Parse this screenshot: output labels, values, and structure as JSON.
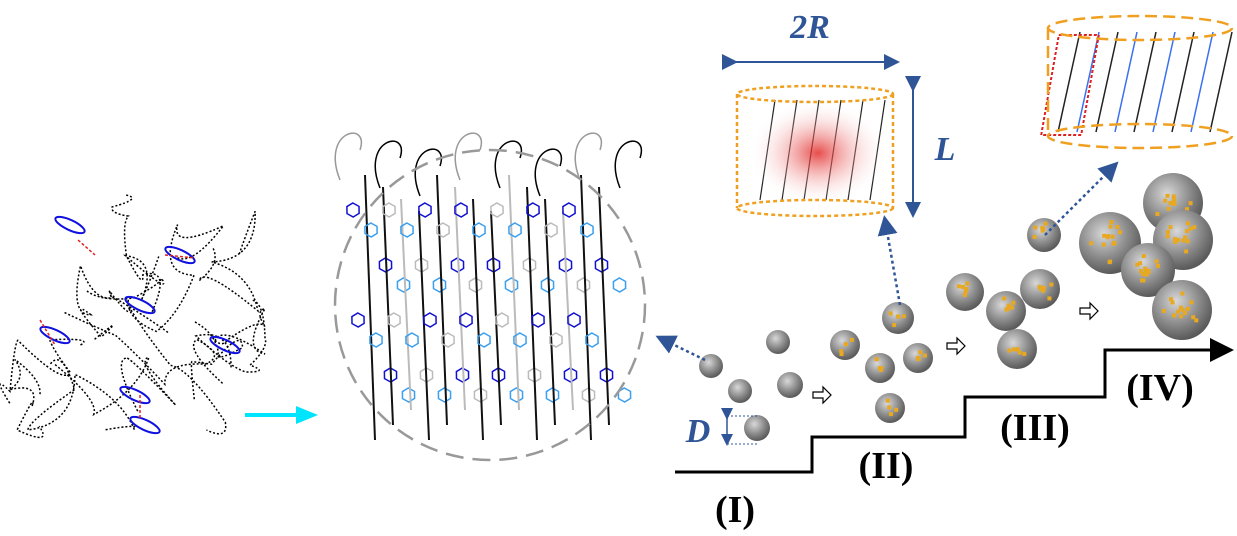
{
  "dimensions": {
    "cylinder_diameter": "2R",
    "cylinder_length": "L",
    "particle_diameter": "D"
  },
  "stages": [
    "(I)",
    "(II)",
    "(III)",
    "(IV)"
  ]
}
